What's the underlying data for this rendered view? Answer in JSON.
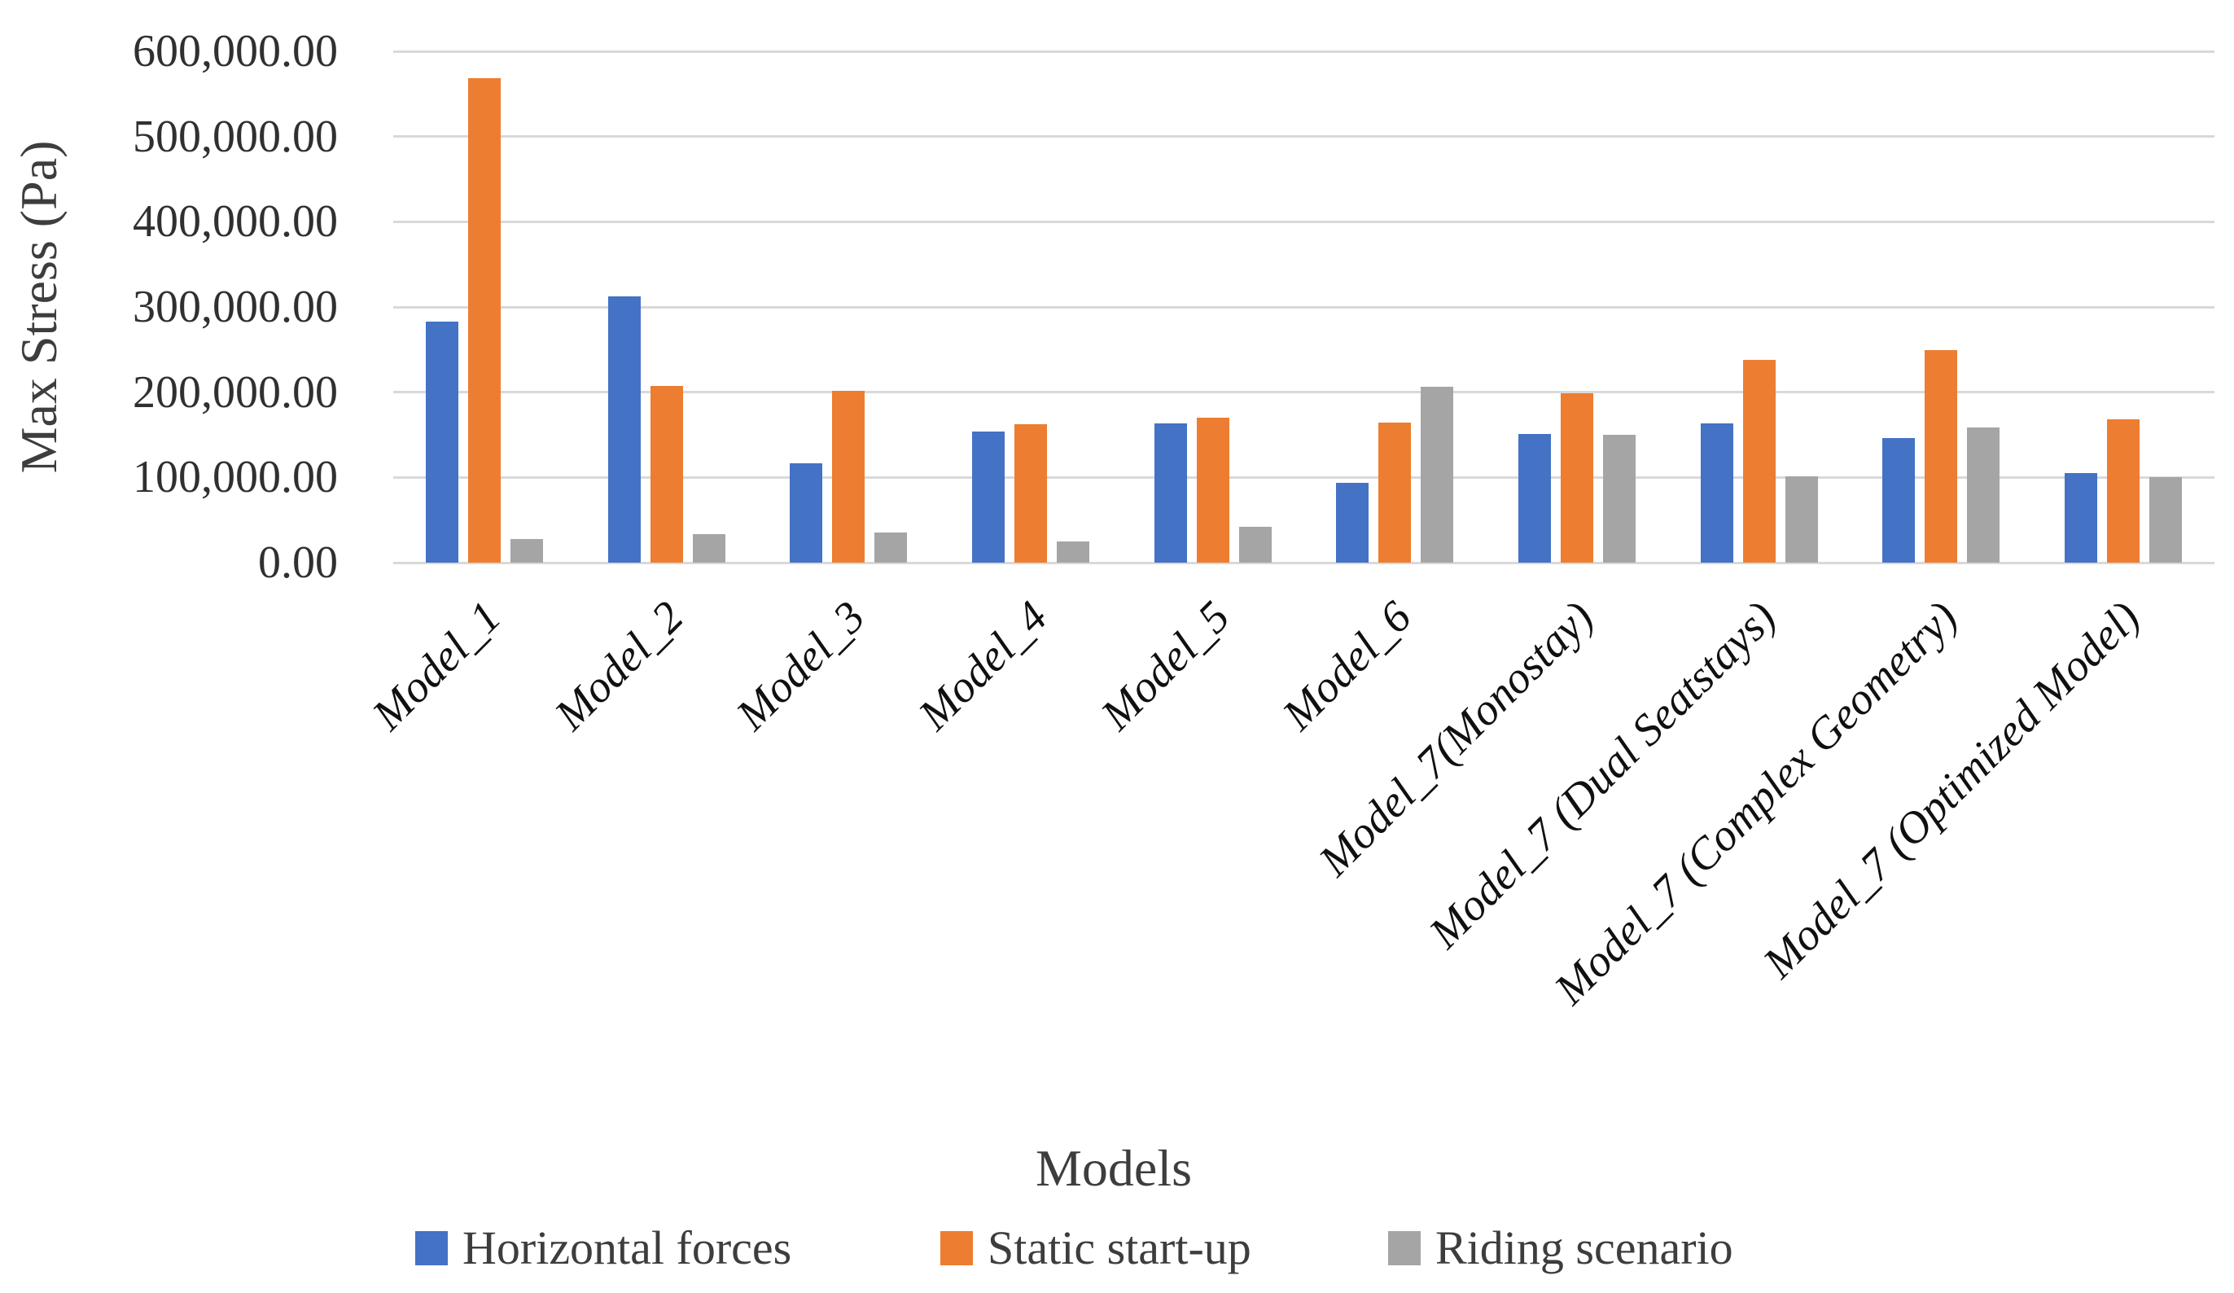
{
  "chart_data": {
    "type": "bar",
    "title": "",
    "xlabel": "Models",
    "ylabel": "Max Stress (Pa)",
    "ylim": [
      0,
      600000
    ],
    "y_tick_labels": [
      "0.00",
      "100,000.00",
      "200,000.00",
      "300,000.00",
      "400,000.00",
      "500,000.00",
      "600,000.00"
    ],
    "grid": true,
    "legend_position": "bottom",
    "categories": [
      "Model_1",
      "Model_2",
      "Model_3",
      "Model_4",
      "Model_5",
      "Model_6",
      "Model_7(Monostay)",
      "Model_7 (Dual Seatstays)",
      "Model_7 (Complex Geometry)",
      "Model_7 (Optimized Model)"
    ],
    "series": [
      {
        "name": "Horizontal forces",
        "color": "#4472C4",
        "values": [
          283000,
          312000,
          117000,
          154000,
          163000,
          94000,
          151000,
          163000,
          146000,
          105000
        ]
      },
      {
        "name": "Static start-up",
        "color": "#ED7D31",
        "values": [
          568000,
          207000,
          202000,
          162000,
          170000,
          164000,
          199000,
          238000,
          249000,
          168000
        ]
      },
      {
        "name": "Riding scenario",
        "color": "#A5A5A5",
        "values": [
          28000,
          33000,
          35000,
          25000,
          42000,
          206000,
          150000,
          101000,
          159000,
          100000
        ]
      }
    ]
  }
}
